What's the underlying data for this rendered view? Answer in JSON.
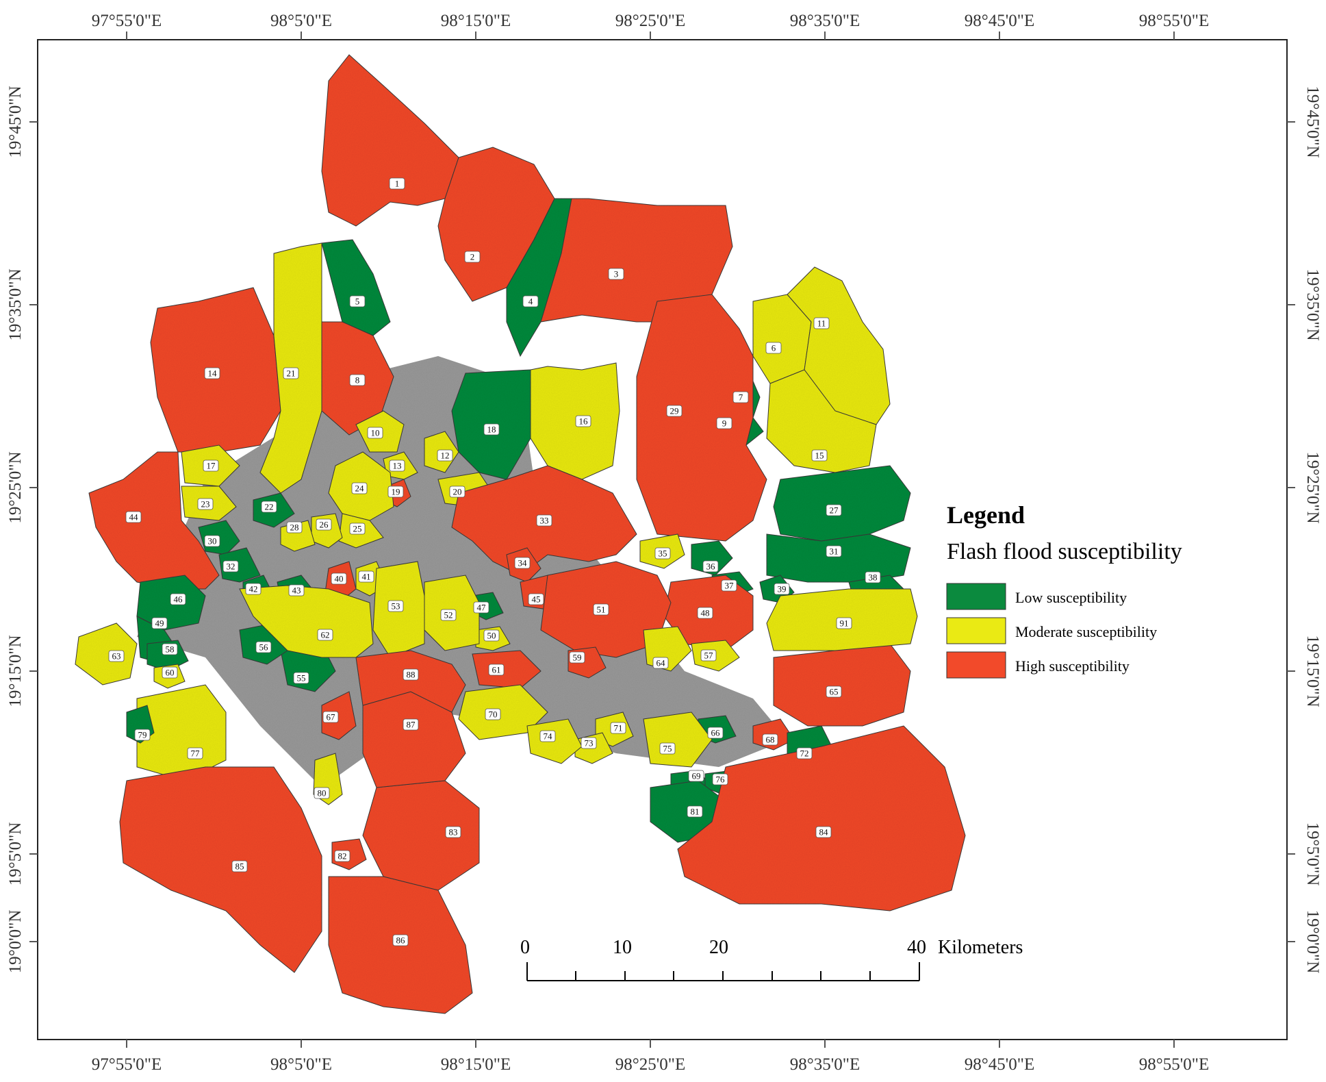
{
  "map": {
    "top_lon_labels": [
      "97°55'0\"E",
      "98°5'0\"E",
      "98°15'0\"E",
      "98°25'0\"E",
      "98°35'0\"E",
      "98°45'0\"E",
      "98°55'0\"E"
    ],
    "bottom_lon_labels": [
      "97°55'0\"E",
      "98°5'0\"E",
      "98°15'0\"E",
      "98°25'0\"E",
      "98°35'0\"E",
      "98°45'0\"E",
      "98°55'0\"E"
    ],
    "left_lat_labels": [
      "19°45'0\"N",
      "19°35'0\"N",
      "19°25'0\"N",
      "19°15'0\"N",
      "19°5'0\"N",
      "19°0'0\"N"
    ],
    "right_lat_labels": [
      "19°45'0\"N",
      "19°35'0\"N",
      "19°25'0\"N",
      "19°15'0\"N",
      "19°5'0\"N",
      "19°0'0\"N"
    ]
  },
  "colors": {
    "low": "#0b8a3e",
    "moderate": "#eaea14",
    "high": "#f24a2a",
    "gap": "#9a9a9a"
  },
  "legend": {
    "title": "Legend",
    "subtitle": "Flash flood susceptibility",
    "items": [
      {
        "label": "Low susceptibility",
        "class": "low"
      },
      {
        "label": "Moderate susceptibility",
        "class": "moderate"
      },
      {
        "label": "High susceptibility",
        "class": "high"
      }
    ]
  },
  "scale_bar": {
    "ticks": [
      "0",
      "10",
      "20",
      "40"
    ],
    "unit": "Kilometers"
  },
  "basins": [
    {
      "id": "1",
      "class": "high"
    },
    {
      "id": "2",
      "class": "high"
    },
    {
      "id": "3",
      "class": "high"
    },
    {
      "id": "4",
      "class": "low"
    },
    {
      "id": "5",
      "class": "low"
    },
    {
      "id": "6",
      "class": "moderate"
    },
    {
      "id": "7",
      "class": "low"
    },
    {
      "id": "8",
      "class": "high"
    },
    {
      "id": "9",
      "class": "low"
    },
    {
      "id": "10",
      "class": "moderate"
    },
    {
      "id": "11",
      "class": "moderate"
    },
    {
      "id": "12",
      "class": "moderate"
    },
    {
      "id": "13",
      "class": "moderate"
    },
    {
      "id": "14",
      "class": "high"
    },
    {
      "id": "15",
      "class": "moderate"
    },
    {
      "id": "16",
      "class": "moderate"
    },
    {
      "id": "17",
      "class": "moderate"
    },
    {
      "id": "18",
      "class": "low"
    },
    {
      "id": "19",
      "class": "high"
    },
    {
      "id": "20",
      "class": "moderate"
    },
    {
      "id": "21",
      "class": "moderate"
    },
    {
      "id": "22",
      "class": "low"
    },
    {
      "id": "23",
      "class": "moderate"
    },
    {
      "id": "24",
      "class": "moderate"
    },
    {
      "id": "25",
      "class": "moderate"
    },
    {
      "id": "26",
      "class": "moderate"
    },
    {
      "id": "27",
      "class": "low"
    },
    {
      "id": "28",
      "class": "moderate"
    },
    {
      "id": "29",
      "class": "high"
    },
    {
      "id": "30",
      "class": "low"
    },
    {
      "id": "31",
      "class": "low"
    },
    {
      "id": "32",
      "class": "low"
    },
    {
      "id": "33",
      "class": "high"
    },
    {
      "id": "34",
      "class": "high"
    },
    {
      "id": "35",
      "class": "moderate"
    },
    {
      "id": "36",
      "class": "low"
    },
    {
      "id": "37",
      "class": "low"
    },
    {
      "id": "38",
      "class": "low"
    },
    {
      "id": "39",
      "class": "low"
    },
    {
      "id": "40",
      "class": "high"
    },
    {
      "id": "41",
      "class": "moderate"
    },
    {
      "id": "42",
      "class": "low"
    },
    {
      "id": "43",
      "class": "low"
    },
    {
      "id": "44",
      "class": "high"
    },
    {
      "id": "45",
      "class": "high"
    },
    {
      "id": "46",
      "class": "low"
    },
    {
      "id": "47",
      "class": "low"
    },
    {
      "id": "48",
      "class": "high"
    },
    {
      "id": "49",
      "class": "low"
    },
    {
      "id": "50",
      "class": "moderate"
    },
    {
      "id": "51",
      "class": "high"
    },
    {
      "id": "52",
      "class": "moderate"
    },
    {
      "id": "53",
      "class": "moderate"
    },
    {
      "id": "55",
      "class": "low"
    },
    {
      "id": "56",
      "class": "low"
    },
    {
      "id": "57",
      "class": "moderate"
    },
    {
      "id": "58",
      "class": "low"
    },
    {
      "id": "59",
      "class": "high"
    },
    {
      "id": "60",
      "class": "moderate"
    },
    {
      "id": "61",
      "class": "high"
    },
    {
      "id": "62",
      "class": "moderate"
    },
    {
      "id": "63",
      "class": "moderate"
    },
    {
      "id": "64",
      "class": "moderate"
    },
    {
      "id": "65",
      "class": "high"
    },
    {
      "id": "66",
      "class": "low"
    },
    {
      "id": "67",
      "class": "high"
    },
    {
      "id": "68",
      "class": "high"
    },
    {
      "id": "69",
      "class": "low"
    },
    {
      "id": "70",
      "class": "moderate"
    },
    {
      "id": "71",
      "class": "moderate"
    },
    {
      "id": "72",
      "class": "low"
    },
    {
      "id": "73",
      "class": "moderate"
    },
    {
      "id": "74",
      "class": "moderate"
    },
    {
      "id": "75",
      "class": "moderate"
    },
    {
      "id": "76",
      "class": "low"
    },
    {
      "id": "77",
      "class": "moderate"
    },
    {
      "id": "79",
      "class": "low"
    },
    {
      "id": "80",
      "class": "moderate"
    },
    {
      "id": "81",
      "class": "low"
    },
    {
      "id": "82",
      "class": "high"
    },
    {
      "id": "83",
      "class": "high"
    },
    {
      "id": "84",
      "class": "high"
    },
    {
      "id": "85",
      "class": "high"
    },
    {
      "id": "86",
      "class": "high"
    },
    {
      "id": "87",
      "class": "high"
    },
    {
      "id": "88",
      "class": "high"
    },
    {
      "id": "91",
      "class": "moderate"
    }
  ]
}
